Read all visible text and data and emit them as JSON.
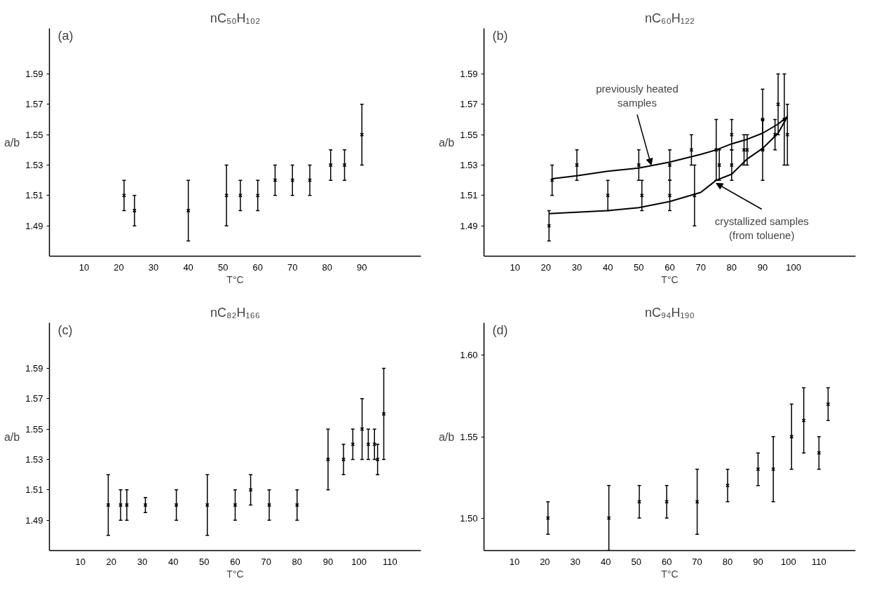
{
  "chart_data": [
    {
      "type": "scatter",
      "title": "nC₅₀H₁₀₂",
      "xlabel": "T°C",
      "ylabel": "a/b",
      "annotations": [
        "(a)"
      ],
      "marker": "cross",
      "xlim": [
        0,
        107
      ],
      "ylim": [
        1.47,
        1.62
      ],
      "xticks": [
        10,
        20,
        30,
        40,
        50,
        60,
        70,
        80,
        90
      ],
      "yticks": [
        1.49,
        1.51,
        1.53,
        1.55,
        1.57,
        1.59
      ],
      "series": [
        {
          "color": "#000000",
          "x": [
            21.5,
            24.5,
            40,
            51,
            55,
            60,
            65,
            70,
            75,
            81,
            85,
            90
          ],
          "values": [
            1.51,
            1.5,
            1.5,
            1.51,
            1.51,
            1.51,
            1.52,
            1.52,
            1.52,
            1.53,
            1.53,
            1.55
          ],
          "errors": [
            0.01,
            0.01,
            0.02,
            0.02,
            0.01,
            0.01,
            0.01,
            0.01,
            0.01,
            0.01,
            0.01,
            0.02
          ]
        }
      ]
    },
    {
      "type": "scatter",
      "title": "nC₆₀H₁₂₂",
      "xlabel": "T°C",
      "ylabel": "a/b",
      "marker": "cross",
      "xlim": [
        0,
        120
      ],
      "ylim": [
        1.47,
        1.62
      ],
      "xticks": [
        10,
        20,
        30,
        40,
        50,
        60,
        70,
        80,
        90,
        100
      ],
      "yticks": [
        1.49,
        1.51,
        1.53,
        1.55,
        1.57,
        1.59
      ],
      "annotations": [
        "(b)",
        {
          "text": "previously heated\nsamples",
          "x": 54,
          "y": 1.53
        },
        {
          "text": "crystallized samples\n(from toluene)",
          "x": 75,
          "y": 1.518
        }
      ],
      "series": [
        {
          "color": "#000000",
          "x": [
            21,
            22,
            30,
            40,
            50,
            51,
            60,
            60,
            67,
            68,
            75,
            76,
            80,
            80,
            84,
            85,
            90,
            90,
            94,
            95,
            97,
            98
          ],
          "values": [
            1.49,
            1.52,
            1.53,
            1.51,
            1.53,
            1.51,
            1.53,
            1.51,
            1.54,
            1.51,
            1.54,
            1.53,
            1.55,
            1.53,
            1.54,
            1.54,
            1.56,
            1.54,
            1.55,
            1.57,
            1.56,
            1.55
          ],
          "errors": [
            0.01,
            0.01,
            0.01,
            0.01,
            0.01,
            0.01,
            0.01,
            0.01,
            0.01,
            0.02,
            0.02,
            0.01,
            0.01,
            0.01,
            0.01,
            0.01,
            0.02,
            0.02,
            0.01,
            0.02,
            0.03,
            0.02
          ]
        },
        {
          "type": "line",
          "marker": "none",
          "color": "#000000",
          "x": [
            22,
            30,
            40,
            50,
            60,
            70,
            75,
            80,
            85,
            90,
            95,
            98
          ],
          "values": [
            1.521,
            1.523,
            1.526,
            1.528,
            1.532,
            1.537,
            1.54,
            1.544,
            1.547,
            1.551,
            1.557,
            1.562
          ]
        },
        {
          "type": "line",
          "marker": "none",
          "color": "#000000",
          "x": [
            21,
            30,
            40,
            50,
            60,
            65,
            70,
            75,
            80,
            85,
            90,
            95,
            98
          ],
          "values": [
            1.498,
            1.499,
            1.5,
            1.502,
            1.506,
            1.509,
            1.512,
            1.52,
            1.524,
            1.534,
            1.541,
            1.551,
            1.562
          ]
        }
      ]
    },
    {
      "type": "scatter",
      "title": "nC₈₂H₁₆₆",
      "xlabel": "T°C",
      "ylabel": "a/b",
      "annotations": [
        "(c)"
      ],
      "marker": "cross",
      "xlim": [
        0,
        120
      ],
      "ylim": [
        1.47,
        1.62
      ],
      "xticks": [
        10,
        20,
        30,
        40,
        50,
        60,
        70,
        80,
        90,
        100,
        110
      ],
      "yticks": [
        1.49,
        1.51,
        1.53,
        1.55,
        1.57,
        1.59
      ],
      "series": [
        {
          "color": "#000000",
          "x": [
            19,
            23,
            25,
            31,
            41,
            51,
            60,
            65,
            71,
            80,
            90,
            95,
            98,
            101,
            103,
            105,
            106,
            108
          ],
          "values": [
            1.5,
            1.5,
            1.5,
            1.5,
            1.5,
            1.5,
            1.5,
            1.51,
            1.5,
            1.5,
            1.53,
            1.53,
            1.54,
            1.55,
            1.54,
            1.54,
            1.53,
            1.56
          ],
          "errors": [
            0.02,
            0.01,
            0.01,
            0.005,
            0.01,
            0.02,
            0.01,
            0.01,
            0.01,
            0.01,
            0.02,
            0.01,
            0.01,
            0.02,
            0.01,
            0.01,
            0.01,
            0.03
          ]
        }
      ]
    },
    {
      "type": "scatter",
      "title": "nC₉₄H₁₉₀",
      "xlabel": "T°C",
      "ylabel": "a/b",
      "annotations": [
        "(d)"
      ],
      "marker": "cross",
      "xlim": [
        0,
        122
      ],
      "ylim": [
        1.48,
        1.62
      ],
      "xticks": [
        10,
        20,
        30,
        40,
        50,
        60,
        70,
        80,
        90,
        100,
        110
      ],
      "yticks": [
        {
          "value": 1.5,
          "label": "1.50"
        },
        1.55,
        {
          "value": 1.6,
          "label": "1.60"
        }
      ],
      "series": [
        {
          "color": "#000000",
          "x": [
            21,
            41,
            51,
            60,
            70,
            80,
            90,
            95,
            101,
            105,
            110,
            113
          ],
          "values": [
            1.5,
            1.5,
            1.51,
            1.51,
            1.51,
            1.52,
            1.53,
            1.53,
            1.55,
            1.56,
            1.54,
            1.57
          ],
          "errors": [
            0.01,
            0.02,
            0.01,
            0.01,
            0.02,
            0.01,
            0.01,
            0.02,
            0.02,
            0.02,
            0.01,
            0.01
          ]
        }
      ]
    }
  ]
}
